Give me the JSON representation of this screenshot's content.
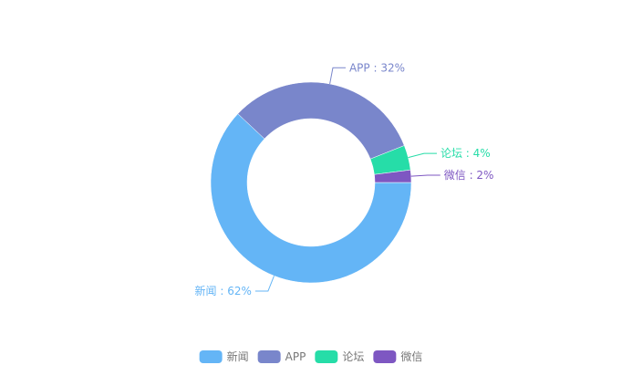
{
  "chart_data": {
    "type": "pie",
    "categories": [
      "新闻",
      "APP",
      "论坛",
      "微信"
    ],
    "values": [
      62,
      32,
      4,
      2
    ],
    "labels": [
      "新闻 : 62%",
      "APP : 32%",
      "论坛 : 4%",
      "微信 : 2%"
    ],
    "colors": [
      "#64b5f6",
      "#7986cb",
      "#26dda8",
      "#7e57c2"
    ],
    "legend": [
      "新闻",
      "APP",
      "论坛",
      "微信"
    ],
    "legend_position": "bottom",
    "chart_variant": "donut"
  }
}
